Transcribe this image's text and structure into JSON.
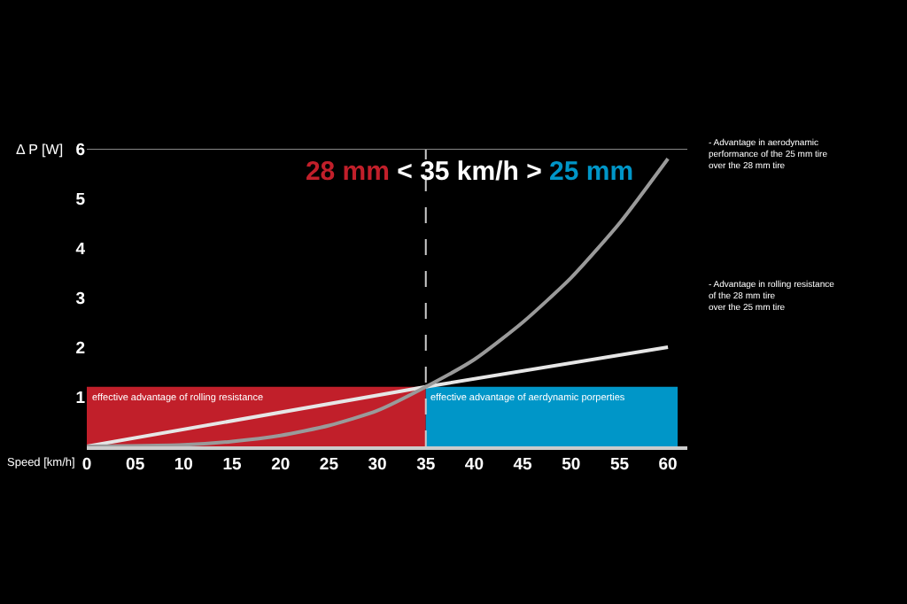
{
  "chart_data": {
    "type": "line",
    "title": "28 mm < 35 km/h > 25 mm",
    "xlabel": "Speed [km/h]",
    "ylabel": "Δ P [W]",
    "xlim": [
      0,
      62
    ],
    "ylim": [
      0,
      6
    ],
    "xticks": [
      0,
      {
        "value": 5,
        "label": "05"
      },
      10,
      15,
      20,
      25,
      30,
      35,
      40,
      45,
      50,
      55,
      60
    ],
    "yticks": [
      1,
      2,
      3,
      4,
      5,
      6
    ],
    "grid": false,
    "series": [
      {
        "type": "area",
        "color": "#c11f2a",
        "x": [
          0,
          35
        ],
        "values": [
          1.2,
          1.2
        ]
      },
      {
        "type": "area",
        "color": "#0096c8",
        "x": [
          35,
          61
        ],
        "values": [
          1.2,
          1.2
        ]
      },
      {
        "color": "#e6e6e6",
        "x": [
          0,
          35,
          60
        ],
        "values": [
          0,
          1.2,
          2.0
        ]
      },
      {
        "color": "#9a9a9a",
        "x": [
          0,
          10,
          15,
          20,
          25,
          30,
          35,
          40,
          45,
          50,
          55,
          60
        ],
        "values": [
          0,
          0.03,
          0.1,
          0.22,
          0.42,
          0.72,
          1.2,
          1.75,
          2.5,
          3.4,
          4.5,
          5.8
        ]
      }
    ],
    "ref_lines": [
      {
        "axis": "x",
        "value": 35,
        "color": "#cccccc",
        "line_style": "dashed"
      },
      {
        "axis": "y",
        "value": 6,
        "color": "#888888",
        "line_style": "solid"
      }
    ],
    "annotations": [
      {
        "text": "effective advantage of rolling resistance",
        "x": 0,
        "y": 1.2
      },
      {
        "text": "effective advantage of aerdynamic porperties",
        "x": 35,
        "y": 1.2
      },
      "- Advantage in aerodynamic\nperformance of the 25 mm tire\nover the 28 mm tire",
      "- Advantage in rolling resistance\nof the 28 mm tire\nover the 25 mm tire"
    ]
  }
}
